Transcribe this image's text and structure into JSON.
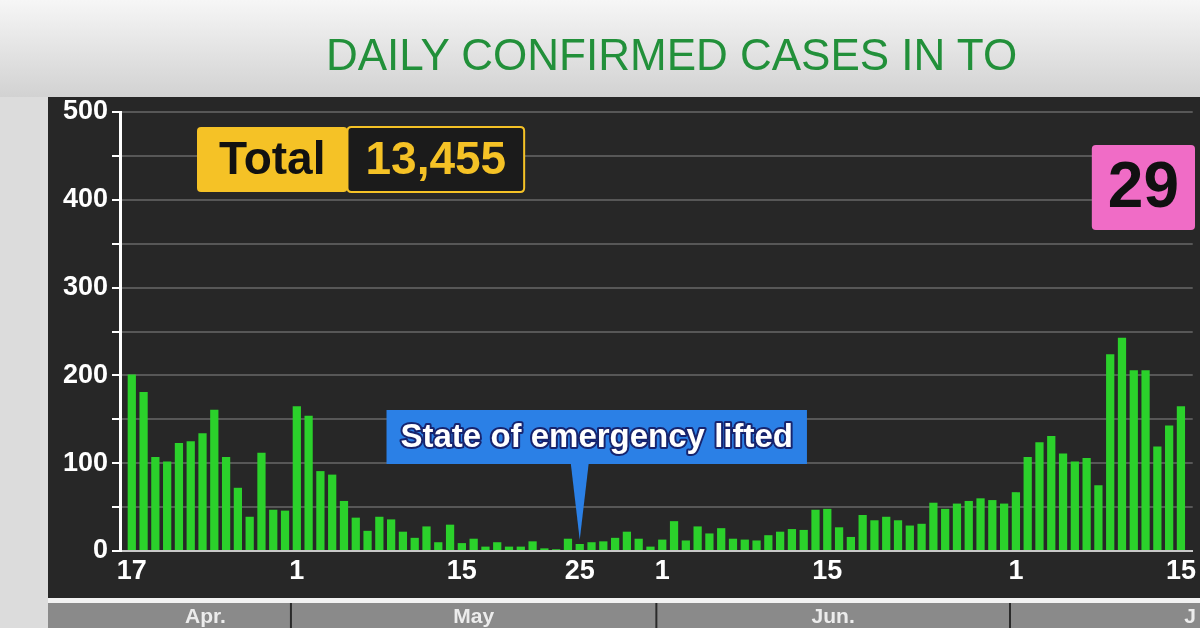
{
  "chart_data": {
    "type": "bar",
    "title": "DAILY CONFIRMED CASES IN TO",
    "x": [
      "--04-17",
      "--04-18",
      "--04-19",
      "--04-20",
      "--04-21",
      "--04-22",
      "--04-23",
      "--04-24",
      "--04-25",
      "--04-26",
      "--04-27",
      "--04-28",
      "--04-29",
      "--04-30",
      "--05-01",
      "--05-02",
      "--05-03",
      "--05-04",
      "--05-05",
      "--05-06",
      "--05-07",
      "--05-08",
      "--05-09",
      "--05-10",
      "--05-11",
      "--05-12",
      "--05-13",
      "--05-14",
      "--05-15",
      "--05-16",
      "--05-17",
      "--05-18",
      "--05-19",
      "--05-20",
      "--05-21",
      "--05-22",
      "--05-23",
      "--05-24",
      "--05-25",
      "--05-26",
      "--05-27",
      "--05-28",
      "--05-29",
      "--05-30",
      "--05-31",
      "--06-01",
      "--06-02",
      "--06-03",
      "--06-04",
      "--06-05",
      "--06-06",
      "--06-07",
      "--06-08",
      "--06-09",
      "--06-10",
      "--06-11",
      "--06-12",
      "--06-13",
      "--06-14",
      "--06-15",
      "--06-16",
      "--06-17",
      "--06-18",
      "--06-19",
      "--06-20",
      "--06-21",
      "--06-22",
      "--06-23",
      "--06-24",
      "--06-25",
      "--06-26",
      "--06-27",
      "--06-28",
      "--06-29",
      "--06-30",
      "--07-01",
      "--07-02",
      "--07-03",
      "--07-04",
      "--07-05",
      "--07-06",
      "--07-07",
      "--07-08",
      "--07-09",
      "--07-10",
      "--07-11",
      "--07-12",
      "--07-13",
      "--07-14",
      "--07-15"
    ],
    "values": [
      201,
      181,
      107,
      102,
      123,
      125,
      134,
      161,
      107,
      72,
      39,
      112,
      47,
      46,
      165,
      154,
      91,
      87,
      57,
      38,
      23,
      39,
      36,
      22,
      15,
      28,
      10,
      30,
      9,
      14,
      5,
      10,
      5,
      5,
      11,
      3,
      2,
      14,
      8,
      10,
      11,
      15,
      22,
      14,
      5,
      13,
      34,
      12,
      28,
      20,
      26,
      14,
      13,
      12,
      18,
      22,
      25,
      24,
      47,
      48,
      27,
      16,
      41,
      35,
      39,
      35,
      29,
      31,
      55,
      48,
      54,
      57,
      60,
      58,
      54,
      67,
      107,
      124,
      131,
      111,
      102,
      106,
      75,
      224,
      243,
      206,
      206,
      119,
      143,
      165
    ],
    "color": "#2bd12b",
    "xlim": [
      "--04-16",
      "--07-16"
    ],
    "xticks": [
      {
        "value": "--04-17",
        "label": "17"
      },
      {
        "value": "--05-01",
        "label": "1"
      },
      {
        "value": "--05-15",
        "label": "15"
      },
      {
        "value": "--05-25",
        "label": "25"
      },
      {
        "value": "--06-01",
        "label": "1"
      },
      {
        "value": "--06-15",
        "label": "15"
      },
      {
        "value": "--07-01",
        "label": "1"
      },
      {
        "value": "--07-15",
        "label": "15"
      }
    ],
    "ylim": [
      0,
      500
    ],
    "yticks": [
      0,
      {
        "value": 50,
        "label": null
      },
      100,
      {
        "value": 150,
        "label": null
      },
      200,
      {
        "value": 250,
        "label": null
      },
      300,
      {
        "value": 350,
        "label": null
      },
      400,
      {
        "value": 450,
        "label": null
      },
      500
    ],
    "grid": "y",
    "annotations": [
      "Total",
      "13,455",
      "29",
      {
        "text": "State of emergency lifted",
        "x": "--05-25",
        "y": 8
      },
      "Apr.",
      "May",
      "Jun.",
      "J"
    ]
  }
}
